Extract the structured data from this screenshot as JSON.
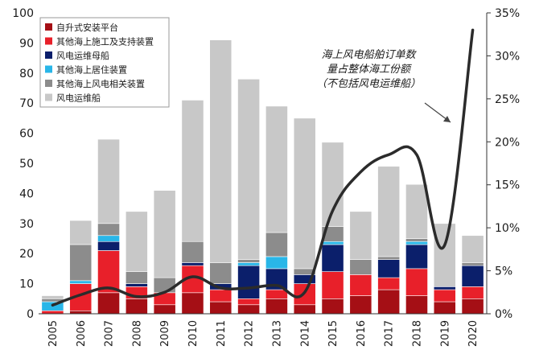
{
  "chart_data": {
    "type": "bar",
    "stacked": true,
    "categories": [
      "2005",
      "2006",
      "2007",
      "2008",
      "2009",
      "2010",
      "2011",
      "2012",
      "2013",
      "2014",
      "2015",
      "2016",
      "2017",
      "2018",
      "2019",
      "2020"
    ],
    "ylim": [
      0,
      100
    ],
    "yticks": [
      "0",
      "10",
      "20",
      "30",
      "40",
      "50",
      "60",
      "70",
      "80",
      "90",
      "100"
    ],
    "y2lim": [
      0,
      35
    ],
    "y2ticks": [
      "0%",
      "5%",
      "10%",
      "15%",
      "20%",
      "25%",
      "30%",
      "35%"
    ],
    "grid": false,
    "legend_position": "top-left",
    "series": [
      {
        "name": "自升式安装平台",
        "color": "#a50f15",
        "values": [
          0,
          1,
          7,
          5,
          3,
          7,
          4,
          3,
          5,
          3,
          5,
          6,
          8,
          6,
          4,
          5
        ]
      },
      {
        "name": "其他海上施工及支持装置",
        "color": "#e8202a",
        "values": [
          1,
          9,
          14,
          4,
          4,
          9,
          4,
          2,
          3,
          7,
          9,
          7,
          4,
          9,
          4,
          4
        ]
      },
      {
        "name": "风电运维母船",
        "color": "#0b1f6b",
        "values": [
          0,
          0,
          3,
          1,
          0,
          1,
          2,
          11,
          7,
          3,
          9,
          0,
          6,
          8,
          1,
          7
        ]
      },
      {
        "name": "其他海上居住装置",
        "color": "#29b6e8",
        "values": [
          3,
          1,
          2,
          0,
          0,
          0,
          0,
          1,
          4,
          0,
          1,
          0,
          0,
          1,
          0,
          0
        ]
      },
      {
        "name": "其他海上风电相关装置",
        "color": "#8c8c8c",
        "values": [
          1,
          12,
          4,
          4,
          5,
          7,
          7,
          1,
          8,
          2,
          5,
          5,
          1,
          1,
          0,
          1
        ]
      },
      {
        "name": "风电运维船",
        "color": "#c8c8c8",
        "values": [
          1,
          8,
          28,
          20,
          29,
          47,
          74,
          60,
          42,
          50,
          28,
          16,
          30,
          18,
          21,
          9
        ]
      }
    ],
    "line": {
      "axis": "right",
      "color": "#2b2b2b",
      "values": [
        1.0,
        2.2,
        3.0,
        2.0,
        2.5,
        4.3,
        3.0,
        3.0,
        3.3,
        2.5,
        12.0,
        16.5,
        18.5,
        18.5,
        8.0,
        33.0
      ]
    },
    "annotation": {
      "lines": [
        "海上风电船舶订单数",
        "量占整体海工份额",
        "（不包括风电运维船）"
      ]
    }
  }
}
